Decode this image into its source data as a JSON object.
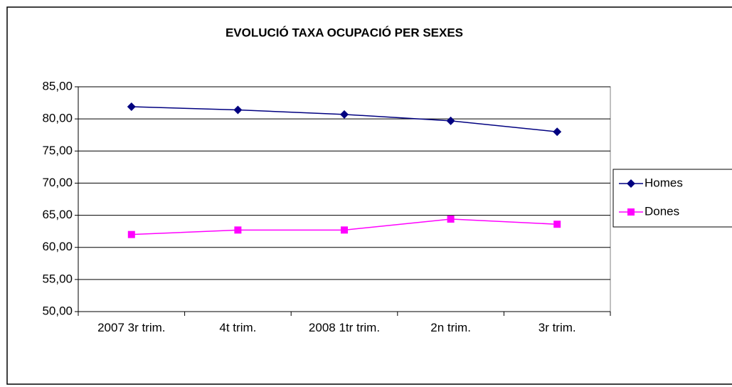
{
  "chart_data": {
    "type": "line",
    "title": "EVOLUCIÓ TAXA OCUPACIÓ PER SEXES",
    "categories": [
      "2007 3r trim.",
      "4t trim.",
      "2008  1tr trim.",
      "2n trim.",
      "3r trim."
    ],
    "series": [
      {
        "name": "Homes",
        "color": "#000080",
        "marker": "diamond",
        "values": [
          81.9,
          81.4,
          80.7,
          79.7,
          78.0
        ]
      },
      {
        "name": "Dones",
        "color": "#ff00ff",
        "marker": "square",
        "values": [
          62.0,
          62.7,
          62.7,
          64.4,
          63.6
        ]
      }
    ],
    "ylim": [
      50,
      85
    ],
    "yticks": [
      {
        "value": 50,
        "label": "50,00"
      },
      {
        "value": 55,
        "label": "55,00"
      },
      {
        "value": 60,
        "label": "60,00"
      },
      {
        "value": 65,
        "label": "65,00"
      },
      {
        "value": 70,
        "label": "70,00"
      },
      {
        "value": 75,
        "label": "75,00"
      },
      {
        "value": 80,
        "label": "80,00"
      },
      {
        "value": 85,
        "label": "85,00"
      }
    ],
    "grid": true,
    "legend": "right"
  }
}
